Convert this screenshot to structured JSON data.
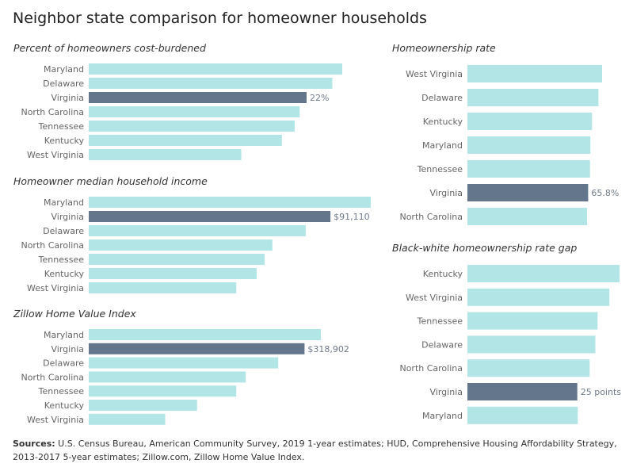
{
  "page": {
    "title": "Neighbor state comparison for homeowner households",
    "sources_label": "Sources:",
    "sources_text": " U.S. Census Bureau, American Community Survey, 2019 1-year estimates; HUD, Comprehensive Housing Affordability Strategy, 2013-2017 5-year estimates; Zillow.com, Zillow Home Value Index."
  },
  "colors": {
    "bar": "#b2e5e6",
    "highlight": "#64768c"
  },
  "chart_data": [
    {
      "type": "bar",
      "orientation": "horizontal",
      "title": "Percent of homeowners cost-burdened",
      "categories": [
        "Maryland",
        "Delaware",
        "Virginia",
        "North Carolina",
        "Tennessee",
        "Kentucky",
        "West Virginia"
      ],
      "values": [
        25.6,
        24.6,
        22,
        21.3,
        20.8,
        19.5,
        15.4
      ],
      "highlight": "Virginia",
      "highlight_label": "22%",
      "xlim": [
        0,
        25.6
      ]
    },
    {
      "type": "bar",
      "orientation": "horizontal",
      "title": "Homeowner median household income",
      "categories": [
        "Maryland",
        "Virginia",
        "Delaware",
        "North Carolina",
        "Tennessee",
        "Kentucky",
        "West Virginia"
      ],
      "values": [
        106300,
        91110,
        81800,
        69200,
        66300,
        63300,
        55600
      ],
      "highlight": "Virginia",
      "highlight_label": "$91,110",
      "xlim": [
        0,
        106300
      ]
    },
    {
      "type": "bar",
      "orientation": "horizontal",
      "title": "Zillow Home Value Index",
      "categories": [
        "Maryland",
        "Virginia",
        "Delaware",
        "North Carolina",
        "Tennessee",
        "Kentucky",
        "West Virginia"
      ],
      "values": [
        343000,
        318902,
        280000,
        232000,
        218000,
        160000,
        113000
      ],
      "highlight": "Virginia",
      "highlight_label": "$318,902",
      "xlim": [
        0,
        343000
      ]
    },
    {
      "type": "bar",
      "orientation": "horizontal",
      "title": "Homeownership rate",
      "categories": [
        "West Virginia",
        "Delaware",
        "Kentucky",
        "Maryland",
        "Tennessee",
        "Virginia",
        "North Carolina"
      ],
      "values": [
        73.4,
        71.4,
        67.9,
        67.0,
        66.8,
        65.8,
        65.2
      ],
      "highlight": "Virginia",
      "highlight_label": "65.8%",
      "xlim": [
        0,
        73.4
      ]
    },
    {
      "type": "bar",
      "orientation": "horizontal",
      "title": "Black-white homeownership rate gap",
      "categories": [
        "Kentucky",
        "West Virginia",
        "Tennessee",
        "Delaware",
        "North Carolina",
        "Virginia",
        "Maryland"
      ],
      "values": [
        34.6,
        32.3,
        29.6,
        29.1,
        27.8,
        25,
        25.1
      ],
      "highlight": "Virginia",
      "highlight_label": "25 points",
      "xlim": [
        0,
        34.6
      ]
    }
  ]
}
